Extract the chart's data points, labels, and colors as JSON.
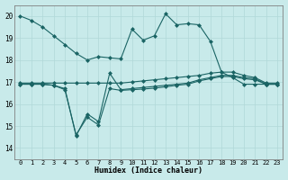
{
  "xlabel": "Humidex (Indice chaleur)",
  "x_ticks": [
    0,
    1,
    2,
    3,
    4,
    5,
    6,
    7,
    8,
    9,
    10,
    11,
    12,
    13,
    14,
    15,
    16,
    17,
    18,
    19,
    20,
    21,
    22,
    23
  ],
  "ylim": [
    13.5,
    20.5
  ],
  "xlim": [
    -0.5,
    23.5
  ],
  "yticks": [
    14,
    15,
    16,
    17,
    18,
    19,
    20
  ],
  "bg_color": "#c8eaea",
  "grid_color": "#b0d8d8",
  "line_color": "#1a6464",
  "lines": [
    {
      "x": [
        0,
        1,
        2,
        3,
        4,
        5,
        6,
        7,
        8,
        9,
        10,
        11,
        12,
        13,
        14,
        15,
        16,
        17,
        18,
        19,
        20,
        21,
        22,
        23
      ],
      "y": [
        20.0,
        19.8,
        19.5,
        19.1,
        18.7,
        18.3,
        18.0,
        18.15,
        18.1,
        18.05,
        19.4,
        18.9,
        19.1,
        20.1,
        19.6,
        19.65,
        19.6,
        18.85,
        17.45,
        17.2,
        16.9,
        16.9,
        16.9,
        16.9
      ]
    },
    {
      "x": [
        0,
        1,
        2,
        3,
        4,
        5,
        6,
        7,
        8,
        9,
        10,
        11,
        12,
        13,
        14,
        15,
        16,
        17,
        18,
        19,
        20,
        21,
        22,
        23
      ],
      "y": [
        16.95,
        16.95,
        16.95,
        16.95,
        16.95,
        16.95,
        16.95,
        16.95,
        16.95,
        16.95,
        17.0,
        17.05,
        17.1,
        17.15,
        17.2,
        17.25,
        17.3,
        17.4,
        17.45,
        17.45,
        17.3,
        17.2,
        16.95,
        16.95
      ]
    },
    {
      "x": [
        0,
        1,
        2,
        3,
        4,
        5,
        6,
        7,
        8,
        9,
        10,
        11,
        12,
        13,
        14,
        15,
        16,
        17,
        18,
        19,
        20,
        21,
        22,
        23
      ],
      "y": [
        16.9,
        16.9,
        16.9,
        16.85,
        16.7,
        14.55,
        15.55,
        15.2,
        17.4,
        16.65,
        16.7,
        16.75,
        16.8,
        16.85,
        16.9,
        16.95,
        17.1,
        17.2,
        17.3,
        17.3,
        17.2,
        17.15,
        16.9,
        16.9
      ]
    },
    {
      "x": [
        0,
        1,
        2,
        3,
        4,
        5,
        6,
        7,
        8,
        9,
        10,
        11,
        12,
        13,
        14,
        15,
        16,
        17,
        18,
        19,
        20,
        21,
        22,
        23
      ],
      "y": [
        16.9,
        16.9,
        16.9,
        16.85,
        16.65,
        14.6,
        15.4,
        15.05,
        16.7,
        16.62,
        16.65,
        16.68,
        16.72,
        16.78,
        16.85,
        16.9,
        17.05,
        17.15,
        17.25,
        17.25,
        17.15,
        17.1,
        16.9,
        16.9
      ]
    }
  ]
}
